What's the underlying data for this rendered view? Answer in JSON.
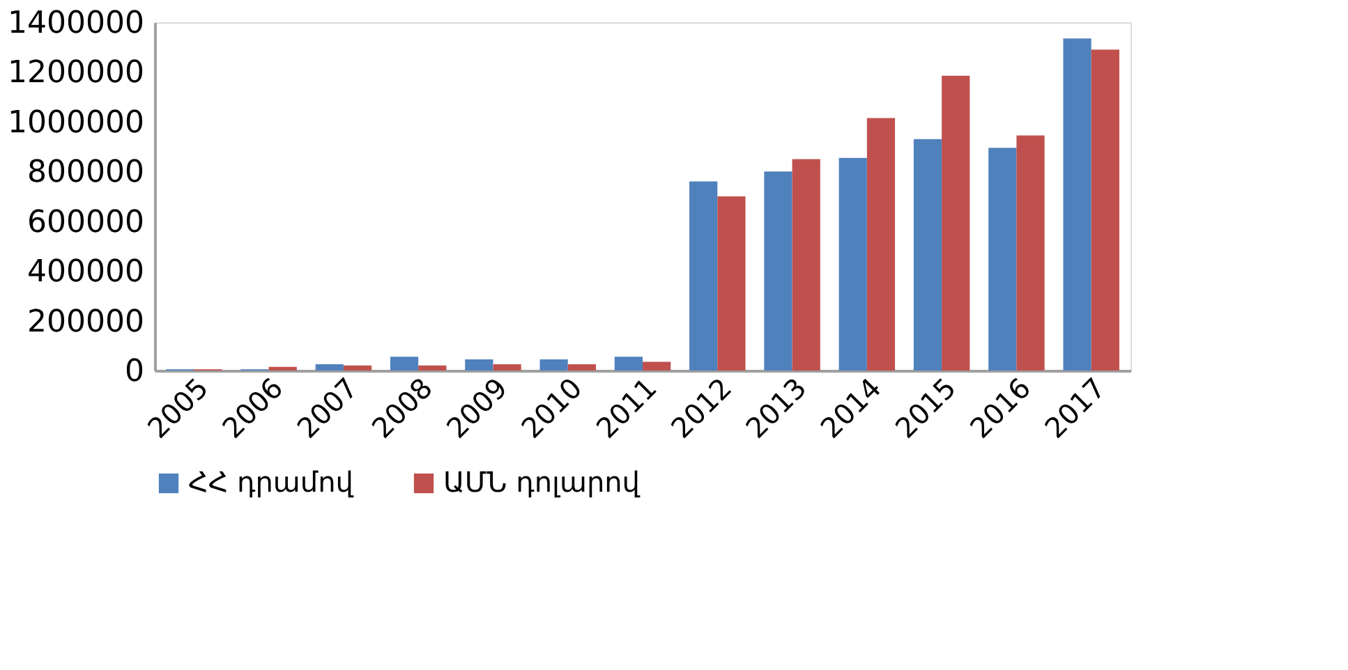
{
  "chart_data": {
    "type": "bar",
    "categories": [
      "2005",
      "2006",
      "2007",
      "2008",
      "2009",
      "2010",
      "2011",
      "2012",
      "2013",
      "2014",
      "2015",
      "2016",
      "2017"
    ],
    "series": [
      {
        "name": "ՀՀ դրամով",
        "color": "#4f81bd",
        "values": [
          5000,
          5000,
          25000,
          55000,
          45000,
          45000,
          55000,
          760000,
          800000,
          855000,
          930000,
          895000,
          1335000
        ]
      },
      {
        "name": "ԱՄՆ դոլարով",
        "color": "#c0504d",
        "values": [
          5000,
          15000,
          20000,
          20000,
          25000,
          25000,
          35000,
          700000,
          850000,
          1015000,
          1185000,
          945000,
          1290000
        ]
      }
    ],
    "ylim": [
      0,
      1400000
    ],
    "yticks": [
      0,
      200000,
      400000,
      600000,
      800000,
      1000000,
      1200000,
      1400000
    ],
    "grid": false,
    "legend": "bottom"
  }
}
